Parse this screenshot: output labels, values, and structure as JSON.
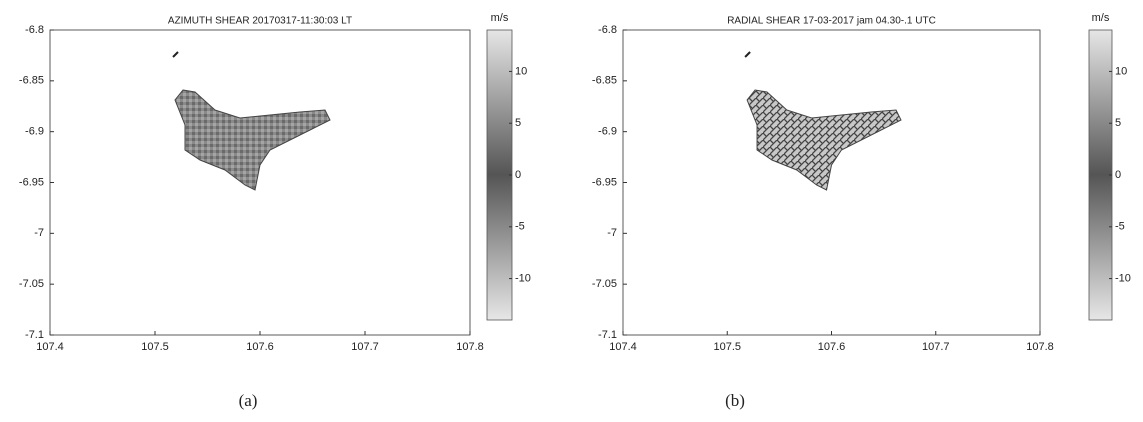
{
  "chart_data": [
    {
      "type": "map",
      "title": "AZIMUTH SHEAR 20170317-11:30:03 LT",
      "caption": "(a)",
      "xlim": [
        107.4,
        107.8
      ],
      "xticks": [
        107.4,
        107.5,
        107.6,
        107.7,
        107.8
      ],
      "ylim": [
        -7.1,
        -6.8
      ],
      "yticks": [
        -6.8,
        -6.85,
        -6.9,
        -6.95,
        -7,
        -7.05,
        -7.1
      ],
      "colorbar": {
        "label": "m/s",
        "lim": [
          -14,
          14
        ],
        "ticks": [
          10,
          5,
          0,
          -5,
          -10
        ]
      }
    },
    {
      "type": "map",
      "title": "RADIAL SHEAR 17-03-2017 jam 04.30-.1 UTC",
      "caption": "(b)",
      "xlim": [
        107.4,
        107.8
      ],
      "xticks": [
        107.4,
        107.5,
        107.6,
        107.7,
        107.8
      ],
      "ylim": [
        -7.1,
        -6.8
      ],
      "yticks": [
        -6.8,
        -6.85,
        -6.9,
        -6.95,
        -7,
        -7.05,
        -7.1
      ],
      "colorbar": {
        "label": "m/s",
        "lim": [
          -14,
          14
        ],
        "ticks": [
          10,
          5,
          0,
          -5,
          -10
        ]
      }
    }
  ]
}
